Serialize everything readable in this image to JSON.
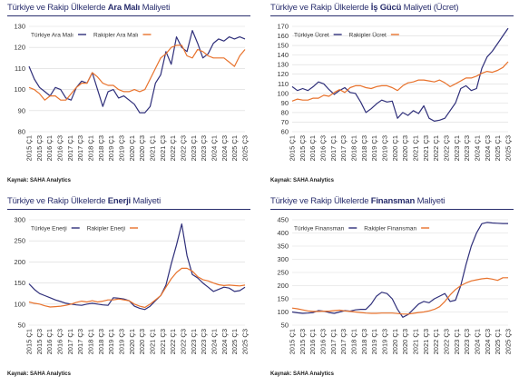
{
  "source_label": "Kaynak: SAHA Analytics",
  "colors": {
    "turkiye": "#2f2f7a",
    "rakip": "#e8722c",
    "title": "#2a2f6e",
    "grid": "#d9d9d9"
  },
  "x_labels": [
    "2015 Ç1",
    "2015 Ç3",
    "2016 Ç1",
    "2016 Ç3",
    "2017 Ç1",
    "2017 Ç3",
    "2018 Ç1",
    "2018 Ç3",
    "2019 Ç1",
    "2019 Ç3",
    "2020 Ç1",
    "2020 Ç3",
    "2021 Ç1",
    "2021 Ç3",
    "2022 Ç1",
    "2022 Ç3",
    "2023 Ç1",
    "2023 Ç3",
    "2024 Ç1",
    "2024 Ç3",
    "2025 Ç1",
    "2025 Ç3"
  ],
  "chart_data": [
    {
      "type": "line",
      "title_prefix": "Türkiye ve Rakip Ülkelerde ",
      "title_bold": "Ara Malı",
      "title_suffix": " Maliyeti",
      "ylim": [
        80,
        130
      ],
      "yticks": [
        80,
        90,
        100,
        110,
        120,
        130
      ],
      "series": [
        {
          "name": "Türkiye Ara Malı",
          "color": "#2f2f7a",
          "values": [
            111,
            105,
            101,
            99,
            97,
            101,
            100,
            96,
            95,
            101,
            104,
            103,
            108,
            100,
            92,
            99,
            100,
            96,
            97,
            95,
            93,
            89,
            89,
            92,
            103,
            107,
            118,
            112,
            125,
            120,
            118,
            128,
            122,
            115,
            117,
            122,
            124,
            123,
            125,
            124,
            125,
            124
          ]
        },
        {
          "name": "Rakipler Ara Malı",
          "color": "#e8722c",
          "values": [
            101,
            100,
            98,
            95,
            97,
            97,
            95,
            95,
            98,
            101,
            103,
            103,
            108,
            106,
            103,
            102,
            102,
            100,
            99,
            99,
            100,
            99,
            100,
            105,
            110,
            115,
            117,
            120,
            121,
            121,
            116,
            115,
            119,
            118,
            116,
            115,
            115,
            115,
            113,
            111,
            116,
            119
          ]
        }
      ]
    },
    {
      "type": "line",
      "title_prefix": "Türkiye ve Rakip Ülkelerde ",
      "title_bold": "İş Gücü",
      "title_suffix": " Maliyeti (Ücret)",
      "ylim": [
        60,
        170
      ],
      "yticks": [
        60,
        70,
        80,
        90,
        100,
        110,
        120,
        130,
        140,
        150,
        160,
        170
      ],
      "series": [
        {
          "name": "Türkiye Ücret",
          "color": "#2f2f7a",
          "values": [
            107,
            103,
            105,
            103,
            107,
            112,
            110,
            104,
            99,
            103,
            106,
            101,
            100,
            91,
            80,
            84,
            89,
            93,
            91,
            92,
            74,
            80,
            77,
            82,
            79,
            87,
            74,
            71,
            72,
            74,
            82,
            90,
            105,
            108,
            103,
            105,
            126,
            138,
            144,
            152,
            160,
            168
          ]
        },
        {
          "name": "Rakipler Ücret",
          "color": "#e8722c",
          "values": [
            92,
            94,
            93,
            93,
            95,
            95,
            98,
            97,
            101,
            104,
            101,
            106,
            108,
            108,
            106,
            105,
            107,
            108,
            108,
            106,
            103,
            108,
            111,
            112,
            114,
            114,
            113,
            112,
            114,
            111,
            107,
            110,
            113,
            116,
            116,
            118,
            121,
            123,
            122,
            124,
            127,
            133
          ]
        }
      ]
    },
    {
      "type": "line",
      "title_prefix": "Türkiye ve Rakip Ülkelerde ",
      "title_bold": "Enerji",
      "title_suffix": " Maliyeti",
      "ylim": [
        50,
        300
      ],
      "yticks": [
        50,
        100,
        150,
        200,
        250,
        300
      ],
      "series": [
        {
          "name": "Türkiye Enerji",
          "color": "#2f2f7a",
          "values": [
            148,
            135,
            125,
            120,
            115,
            110,
            106,
            102,
            100,
            98,
            97,
            100,
            102,
            100,
            98,
            97,
            115,
            114,
            112,
            108,
            95,
            90,
            87,
            95,
            108,
            120,
            145,
            195,
            240,
            290,
            215,
            170,
            162,
            150,
            140,
            130,
            135,
            140,
            138,
            130,
            132,
            140
          ]
        },
        {
          "name": "Rakipler Enerji",
          "color": "#e8722c",
          "values": [
            105,
            102,
            100,
            96,
            93,
            94,
            95,
            97,
            100,
            104,
            107,
            105,
            108,
            105,
            107,
            110,
            110,
            112,
            110,
            108,
            100,
            95,
            92,
            100,
            110,
            120,
            140,
            160,
            175,
            185,
            185,
            178,
            165,
            158,
            155,
            150,
            146,
            144,
            145,
            144,
            143,
            145
          ]
        }
      ]
    },
    {
      "type": "line",
      "title_prefix": "Türkiye ve Rakip Ülkelerde ",
      "title_bold": "Finansman",
      "title_suffix": " Maliyeti",
      "ylim": [
        50,
        450
      ],
      "yticks": [
        50,
        100,
        150,
        200,
        250,
        300,
        350,
        400,
        450
      ],
      "series": [
        {
          "name": "Türkiye Finansman",
          "color": "#2f2f7a",
          "values": [
            100,
            97,
            95,
            96,
            98,
            105,
            103,
            98,
            95,
            100,
            105,
            103,
            108,
            110,
            110,
            130,
            160,
            175,
            170,
            150,
            110,
            80,
            90,
            110,
            130,
            140,
            135,
            150,
            160,
            170,
            140,
            145,
            200,
            280,
            350,
            400,
            435,
            440,
            438,
            437,
            436,
            436
          ]
        },
        {
          "name": "Rakipler Finansman",
          "color": "#e8722c",
          "values": [
            115,
            112,
            108,
            104,
            102,
            102,
            103,
            103,
            105,
            107,
            104,
            102,
            100,
            98,
            96,
            95,
            95,
            96,
            96,
            96,
            94,
            92,
            92,
            95,
            98,
            100,
            104,
            110,
            120,
            140,
            165,
            185,
            200,
            210,
            218,
            222,
            226,
            228,
            225,
            220,
            230,
            230
          ]
        }
      ]
    }
  ]
}
